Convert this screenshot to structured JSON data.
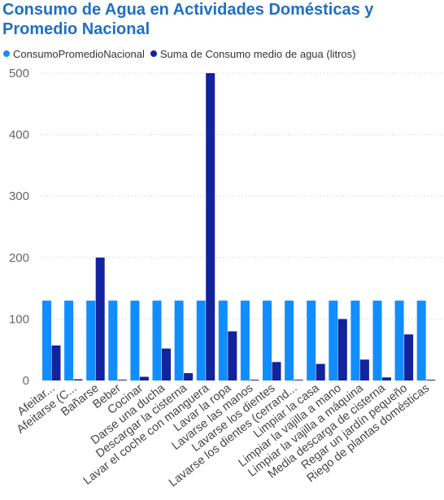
{
  "chart_data": {
    "type": "bar",
    "title": "Consumo de Agua en Actividades Domésticas y Promedio Nacional",
    "categories": [
      "Afeitar...",
      "Afeitarse (C...",
      "Bañarse",
      "Beber",
      "Cocinar",
      "Darse una ducha",
      "Descargar la cisterna",
      "Lavar el coche con manguera",
      "Lavar la ropa",
      "Lavarse las manos",
      "Lavarse los dientes",
      "Lavarse los dientes (cerrand...",
      "Limpiar la casa",
      "Limpiar la vajilla a mano",
      "Limpiar la vajilla a máquina",
      "Media descarga de cisterna",
      "Regar un jardín pequeño",
      "Riego de plantas domésticas"
    ],
    "series": [
      {
        "name": "ConsumoPromedioNacional",
        "color": "#118DFF",
        "values": [
          130,
          130,
          130,
          130,
          130,
          130,
          130,
          130,
          130,
          130,
          130,
          130,
          130,
          130,
          130,
          130,
          130,
          130
        ]
      },
      {
        "name": "Suma de Consumo medio de agua (litros)",
        "color": "#12239E",
        "values": [
          57,
          2,
          200,
          1,
          6,
          52,
          12,
          500,
          80,
          1,
          30,
          1,
          27,
          100,
          34,
          5,
          75,
          1
        ]
      }
    ],
    "ylim": [
      0,
      500
    ],
    "yticks": [
      0,
      100,
      200,
      300,
      400,
      500
    ],
    "grid": true,
    "legend_position": "top-left",
    "title_color": "#1F6FC5"
  }
}
